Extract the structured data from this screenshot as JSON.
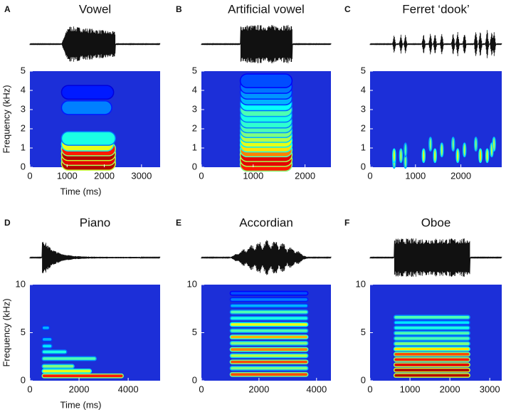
{
  "chart_data": [
    {
      "type": "spectrogram",
      "label": "A",
      "title": "Vowel",
      "xlabel": "Time (ms)",
      "ylabel": "Frequency (kHz)",
      "xlim": [
        0,
        3500
      ],
      "xticks": [
        0,
        1000,
        2000,
        3000
      ],
      "ylim": [
        0,
        5
      ],
      "yticks": [
        0,
        1,
        2,
        3,
        4,
        5
      ],
      "sound": [
        850,
        2300
      ],
      "envelope": "rise-fall",
      "bands": {
        "f": [
          0.2,
          0.45,
          0.7,
          0.95,
          1.2,
          1.5,
          3.1,
          3.9
        ],
        "level": [
          0.95,
          0.9,
          0.95,
          0.85,
          0.6,
          0.4,
          0.25,
          0.15
        ],
        "start": [
          850,
          850,
          850,
          850,
          850,
          850,
          850,
          850
        ],
        "end": [
          2300,
          2300,
          2300,
          2300,
          2250,
          2300,
          2200,
          2250
        ]
      }
    },
    {
      "type": "spectrogram",
      "label": "B",
      "title": "Artificial vowel",
      "xlim": [
        0,
        2500
      ],
      "xticks": [
        0,
        1000,
        2000
      ],
      "ylim": [
        0,
        5
      ],
      "yticks": [
        0,
        1,
        2,
        3,
        4,
        5
      ],
      "sound": [
        750,
        1750
      ],
      "envelope": "box",
      "bands": {
        "f": [
          0.15,
          0.4,
          0.65,
          0.9,
          1.15,
          1.4,
          1.65,
          1.9,
          2.15,
          2.4,
          2.7,
          3.0,
          3.3,
          3.6,
          3.9,
          4.2,
          4.5
        ],
        "level": [
          0.85,
          0.9,
          0.9,
          0.75,
          0.65,
          0.6,
          0.55,
          0.5,
          0.45,
          0.42,
          0.4,
          0.45,
          0.38,
          0.3,
          0.27,
          0.24,
          0.2
        ],
        "start": [
          750,
          750,
          750,
          750,
          750,
          750,
          750,
          750,
          750,
          750,
          750,
          750,
          750,
          750,
          750,
          750,
          750
        ],
        "end": [
          1750,
          1750,
          1750,
          1750,
          1750,
          1750,
          1750,
          1750,
          1750,
          1750,
          1750,
          1750,
          1750,
          1750,
          1750,
          1750,
          1750
        ]
      }
    },
    {
      "type": "spectrogram",
      "label": "C",
      "title": "Ferret ‘dook’",
      "xlim": [
        0,
        2900
      ],
      "xticks": [
        0,
        1000,
        2000
      ],
      "ylim": [
        0,
        5
      ],
      "yticks": [
        0,
        1,
        2,
        3,
        4,
        5
      ],
      "sound": [
        100,
        2800
      ],
      "envelope": "bursts",
      "bands": {
        "f": [
          0.3,
          0.6,
          0.6,
          0.3,
          0.9,
          0.6,
          1.2,
          0.6,
          0.9,
          1.2,
          0.6,
          0.9,
          1.2,
          0.6,
          0.6,
          0.9,
          1.2
        ],
        "level": [
          0.5,
          0.6,
          0.55,
          0.5,
          0.45,
          0.6,
          0.5,
          0.6,
          0.55,
          0.5,
          0.6,
          0.55,
          0.5,
          0.65,
          0.6,
          0.55,
          0.55
        ],
        "start": [
          500,
          500,
          650,
          750,
          750,
          1150,
          1300,
          1400,
          1550,
          1800,
          1900,
          2050,
          2300,
          2400,
          2550,
          2650,
          2700
        ],
        "end": [
          560,
          560,
          710,
          810,
          810,
          1210,
          1360,
          1460,
          1610,
          1860,
          1960,
          2110,
          2360,
          2460,
          2610,
          2710,
          2760
        ]
      }
    },
    {
      "type": "spectrogram",
      "label": "D",
      "title": "Piano",
      "xlabel": "Time (ms)",
      "ylabel": "Frequency (kHz)",
      "xlim": [
        0,
        5300
      ],
      "xticks": [
        0,
        2000,
        4000
      ],
      "ylim": [
        0,
        10
      ],
      "yticks": [
        0,
        5,
        10
      ],
      "sound": [
        500,
        4500
      ],
      "envelope": "decay",
      "bands": {
        "f": [
          0.5,
          1.0,
          1.5,
          2.3,
          3.0,
          3.6,
          4.3,
          5.5
        ],
        "level": [
          0.85,
          0.6,
          0.5,
          0.45,
          0.4,
          0.35,
          0.3,
          0.3
        ],
        "start": [
          500,
          500,
          500,
          500,
          500,
          500,
          500,
          500
        ],
        "end": [
          3800,
          2500,
          1800,
          2700,
          1500,
          900,
          900,
          800
        ]
      }
    },
    {
      "type": "spectrogram",
      "label": "E",
      "title": "Accordian",
      "xlim": [
        0,
        4500
      ],
      "xticks": [
        0,
        2000,
        4000
      ],
      "ylim": [
        0,
        10
      ],
      "yticks": [
        0,
        5,
        10
      ],
      "sound": [
        1000,
        3700
      ],
      "envelope": "pulsed",
      "bands": {
        "f": [
          0.65,
          1.3,
          1.95,
          2.6,
          3.25,
          3.9,
          4.55,
          5.2,
          5.85,
          6.5,
          7.15,
          7.8,
          8.45,
          9.1
        ],
        "level": [
          0.8,
          0.5,
          0.8,
          0.55,
          0.75,
          0.5,
          0.7,
          0.45,
          0.6,
          0.4,
          0.45,
          0.3,
          0.25,
          0.2
        ],
        "start": [
          1000,
          1000,
          1000,
          1000,
          1000,
          1000,
          1000,
          1000,
          1000,
          1000,
          1000,
          1000,
          1000,
          1000
        ],
        "end": [
          3700,
          3700,
          3700,
          3700,
          3700,
          3700,
          3700,
          3700,
          3700,
          3700,
          3700,
          3700,
          3700,
          3700
        ]
      }
    },
    {
      "type": "spectrogram",
      "label": "F",
      "title": "Oboe",
      "xlim": [
        0,
        3300
      ],
      "xticks": [
        0,
        1000,
        2000,
        3000
      ],
      "ylim": [
        0,
        10
      ],
      "yticks": [
        0,
        5,
        10
      ],
      "sound": [
        600,
        2500
      ],
      "envelope": "box",
      "bands": {
        "f": [
          0.55,
          1.1,
          1.65,
          2.2,
          2.75,
          3.3,
          3.85,
          4.4,
          4.95,
          5.5,
          6.05,
          6.6
        ],
        "level": [
          0.95,
          0.95,
          0.9,
          0.85,
          0.8,
          0.65,
          0.5,
          0.45,
          0.45,
          0.4,
          0.35,
          0.45
        ],
        "start": [
          600,
          600,
          600,
          600,
          600,
          600,
          600,
          600,
          600,
          600,
          600,
          600
        ],
        "end": [
          2500,
          2500,
          2500,
          2500,
          2500,
          2500,
          2500,
          2500,
          2500,
          2500,
          2500,
          2500
        ]
      }
    }
  ]
}
